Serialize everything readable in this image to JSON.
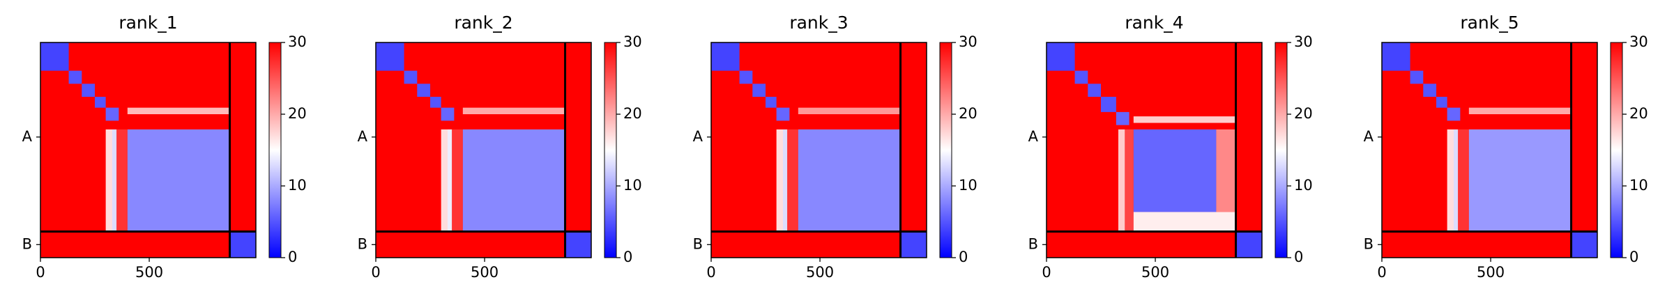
{
  "chart_data": [
    {
      "type": "heatmap",
      "title": "rank_1",
      "xlim": [
        0,
        990
      ],
      "ylim": [
        990,
        0
      ],
      "xticks": [
        0,
        500
      ],
      "yticks": [
        {
          "value": 435,
          "label": "A"
        },
        {
          "value": 930,
          "label": "B"
        }
      ],
      "chain_breaks": [
        870
      ],
      "colormap": [
        "#0000ff",
        "#ffffff",
        "#ff0000"
      ],
      "background": 30,
      "colorbar": {
        "lim": [
          0,
          30
        ],
        "ticks": [
          0,
          10,
          20,
          30
        ]
      },
      "blocks": [
        {
          "x": [
            0,
            130
          ],
          "y": [
            0,
            130
          ],
          "value": 4
        },
        {
          "x": [
            130,
            190
          ],
          "y": [
            130,
            190
          ],
          "value": 5
        },
        {
          "x": [
            190,
            250
          ],
          "y": [
            190,
            250
          ],
          "value": 5
        },
        {
          "x": [
            250,
            300
          ],
          "y": [
            250,
            300
          ],
          "value": 5
        },
        {
          "x": [
            300,
            360
          ],
          "y": [
            300,
            360
          ],
          "value": 6
        },
        {
          "x": [
            400,
            870
          ],
          "y": [
            300,
            330
          ],
          "value": 19
        },
        {
          "x": [
            300,
            330
          ],
          "y": [
            400,
            870
          ],
          "value": 17
        },
        {
          "x": [
            330,
            350
          ],
          "y": [
            400,
            870
          ],
          "value": 13
        },
        {
          "x": [
            350,
            400
          ],
          "y": [
            400,
            870
          ],
          "value": 27
        },
        {
          "x": [
            400,
            870
          ],
          "y": [
            400,
            870
          ],
          "value": 8
        },
        {
          "x": [
            870,
            990
          ],
          "y": [
            870,
            990
          ],
          "value": 4
        }
      ]
    },
    {
      "type": "heatmap",
      "title": "rank_2",
      "xlim": [
        0,
        990
      ],
      "ylim": [
        990,
        0
      ],
      "xticks": [
        0,
        500
      ],
      "yticks": [
        {
          "value": 435,
          "label": "A"
        },
        {
          "value": 930,
          "label": "B"
        }
      ],
      "chain_breaks": [
        870
      ],
      "colormap": [
        "#0000ff",
        "#ffffff",
        "#ff0000"
      ],
      "background": 30,
      "colorbar": {
        "lim": [
          0,
          30
        ],
        "ticks": [
          0,
          10,
          20,
          30
        ]
      },
      "blocks": [
        {
          "x": [
            0,
            130
          ],
          "y": [
            0,
            130
          ],
          "value": 4
        },
        {
          "x": [
            130,
            190
          ],
          "y": [
            130,
            190
          ],
          "value": 5
        },
        {
          "x": [
            190,
            250
          ],
          "y": [
            190,
            250
          ],
          "value": 5
        },
        {
          "x": [
            250,
            300
          ],
          "y": [
            250,
            300
          ],
          "value": 5
        },
        {
          "x": [
            300,
            360
          ],
          "y": [
            300,
            360
          ],
          "value": 6
        },
        {
          "x": [
            400,
            870
          ],
          "y": [
            300,
            330
          ],
          "value": 20
        },
        {
          "x": [
            300,
            330
          ],
          "y": [
            400,
            870
          ],
          "value": 17
        },
        {
          "x": [
            330,
            350
          ],
          "y": [
            400,
            870
          ],
          "value": 14
        },
        {
          "x": [
            350,
            400
          ],
          "y": [
            400,
            870
          ],
          "value": 27
        },
        {
          "x": [
            400,
            870
          ],
          "y": [
            400,
            870
          ],
          "value": 8
        },
        {
          "x": [
            870,
            990
          ],
          "y": [
            870,
            990
          ],
          "value": 4
        }
      ]
    },
    {
      "type": "heatmap",
      "title": "rank_3",
      "xlim": [
        0,
        990
      ],
      "ylim": [
        990,
        0
      ],
      "xticks": [
        0,
        500
      ],
      "yticks": [
        {
          "value": 435,
          "label": "A"
        },
        {
          "value": 930,
          "label": "B"
        }
      ],
      "chain_breaks": [
        870
      ],
      "colormap": [
        "#0000ff",
        "#ffffff",
        "#ff0000"
      ],
      "background": 30,
      "colorbar": {
        "lim": [
          0,
          30
        ],
        "ticks": [
          0,
          10,
          20,
          30
        ]
      },
      "blocks": [
        {
          "x": [
            0,
            130
          ],
          "y": [
            0,
            130
          ],
          "value": 4
        },
        {
          "x": [
            130,
            190
          ],
          "y": [
            130,
            190
          ],
          "value": 5
        },
        {
          "x": [
            190,
            250
          ],
          "y": [
            190,
            250
          ],
          "value": 5
        },
        {
          "x": [
            250,
            300
          ],
          "y": [
            250,
            300
          ],
          "value": 5
        },
        {
          "x": [
            300,
            360
          ],
          "y": [
            300,
            360
          ],
          "value": 6
        },
        {
          "x": [
            400,
            870
          ],
          "y": [
            300,
            330
          ],
          "value": 21
        },
        {
          "x": [
            300,
            330
          ],
          "y": [
            400,
            870
          ],
          "value": 17
        },
        {
          "x": [
            330,
            350
          ],
          "y": [
            400,
            870
          ],
          "value": 13
        },
        {
          "x": [
            350,
            400
          ],
          "y": [
            400,
            870
          ],
          "value": 27
        },
        {
          "x": [
            400,
            870
          ],
          "y": [
            400,
            870
          ],
          "value": 8
        },
        {
          "x": [
            870,
            990
          ],
          "y": [
            870,
            990
          ],
          "value": 4
        }
      ]
    },
    {
      "type": "heatmap",
      "title": "rank_4",
      "xlim": [
        0,
        990
      ],
      "ylim": [
        990,
        0
      ],
      "xticks": [
        0,
        500
      ],
      "yticks": [
        {
          "value": 435,
          "label": "A"
        },
        {
          "value": 930,
          "label": "B"
        }
      ],
      "chain_breaks": [
        870
      ],
      "colormap": [
        "#0000ff",
        "#ffffff",
        "#ff0000"
      ],
      "background": 30,
      "colorbar": {
        "lim": [
          0,
          30
        ],
        "ticks": [
          0,
          10,
          20,
          30
        ]
      },
      "blocks": [
        {
          "x": [
            0,
            130
          ],
          "y": [
            0,
            130
          ],
          "value": 4
        },
        {
          "x": [
            130,
            190
          ],
          "y": [
            130,
            190
          ],
          "value": 5
        },
        {
          "x": [
            190,
            250
          ],
          "y": [
            190,
            250
          ],
          "value": 5
        },
        {
          "x": [
            250,
            320
          ],
          "y": [
            250,
            320
          ],
          "value": 5
        },
        {
          "x": [
            320,
            380
          ],
          "y": [
            320,
            380
          ],
          "value": 6
        },
        {
          "x": [
            400,
            870
          ],
          "y": [
            340,
            370
          ],
          "value": 18
        },
        {
          "x": [
            330,
            360
          ],
          "y": [
            400,
            870
          ],
          "value": 18
        },
        {
          "x": [
            360,
            400
          ],
          "y": [
            400,
            870
          ],
          "value": 26
        },
        {
          "x": [
            400,
            780
          ],
          "y": [
            400,
            780
          ],
          "value": 6
        },
        {
          "x": [
            400,
            870
          ],
          "y": [
            780,
            870
          ],
          "value": 16
        },
        {
          "x": [
            780,
            870
          ],
          "y": [
            400,
            780
          ],
          "value": 22
        },
        {
          "x": [
            870,
            990
          ],
          "y": [
            870,
            990
          ],
          "value": 4
        }
      ]
    },
    {
      "type": "heatmap",
      "title": "rank_5",
      "xlim": [
        0,
        990
      ],
      "ylim": [
        990,
        0
      ],
      "xticks": [
        0,
        500
      ],
      "yticks": [
        {
          "value": 435,
          "label": "A"
        },
        {
          "value": 930,
          "label": "B"
        }
      ],
      "chain_breaks": [
        870
      ],
      "colormap": [
        "#0000ff",
        "#ffffff",
        "#ff0000"
      ],
      "background": 30,
      "colorbar": {
        "lim": [
          0,
          30
        ],
        "ticks": [
          0,
          10,
          20,
          30
        ]
      },
      "blocks": [
        {
          "x": [
            0,
            130
          ],
          "y": [
            0,
            130
          ],
          "value": 4
        },
        {
          "x": [
            130,
            190
          ],
          "y": [
            130,
            190
          ],
          "value": 5
        },
        {
          "x": [
            190,
            250
          ],
          "y": [
            190,
            250
          ],
          "value": 5
        },
        {
          "x": [
            250,
            300
          ],
          "y": [
            250,
            300
          ],
          "value": 5
        },
        {
          "x": [
            300,
            360
          ],
          "y": [
            300,
            360
          ],
          "value": 6
        },
        {
          "x": [
            400,
            870
          ],
          "y": [
            300,
            330
          ],
          "value": 20
        },
        {
          "x": [
            300,
            330
          ],
          "y": [
            400,
            870
          ],
          "value": 17
        },
        {
          "x": [
            330,
            350
          ],
          "y": [
            400,
            870
          ],
          "value": 13
        },
        {
          "x": [
            350,
            400
          ],
          "y": [
            400,
            870
          ],
          "value": 27
        },
        {
          "x": [
            400,
            870
          ],
          "y": [
            400,
            870
          ],
          "value": 9
        },
        {
          "x": [
            870,
            990
          ],
          "y": [
            870,
            990
          ],
          "value": 4
        }
      ]
    }
  ]
}
